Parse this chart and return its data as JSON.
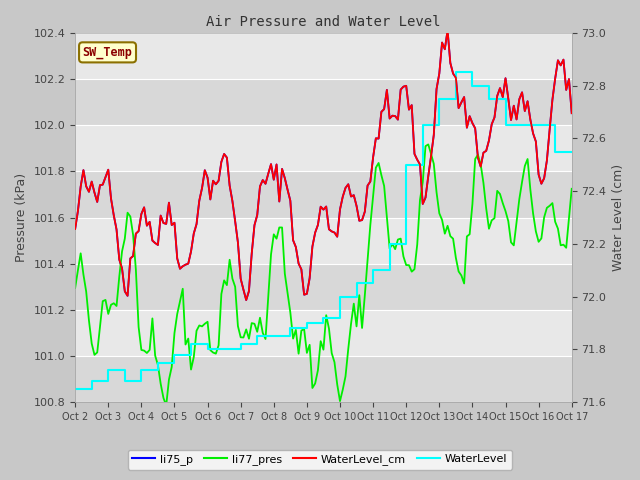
{
  "title": "Air Pressure and Water Level",
  "ylabel_left": "Pressure (kPa)",
  "ylabel_right": "Water Level (cm)",
  "ylim_left": [
    100.8,
    102.4
  ],
  "ylim_right": [
    71.6,
    73.0
  ],
  "fig_bg": "#c8c8c8",
  "plot_bg_dark": "#d0d0d0",
  "plot_bg_light": "#e8e8e8",
  "annotation_text": "SW_Temp",
  "annotation_color": "#8b0000",
  "annotation_bg": "#ffffcc",
  "annotation_border": "#8b7000",
  "x_labels": [
    "Oct 2",
    "Oct 3",
    "Oct 4",
    "Oct 5",
    "Oct 6",
    "Oct 7",
    "Oct 8",
    "Oct 9",
    "Oct 10",
    "Oct 11",
    "Oct 12",
    "Oct 13",
    "Oct 14",
    "Oct 15",
    "Oct 16",
    "Oct 17"
  ],
  "legend_labels": [
    "li75_p",
    "li77_pres",
    "WaterLevel_cm",
    "WaterLevel"
  ],
  "line_colors": [
    "blue",
    "#00ee00",
    "red",
    "cyan"
  ]
}
